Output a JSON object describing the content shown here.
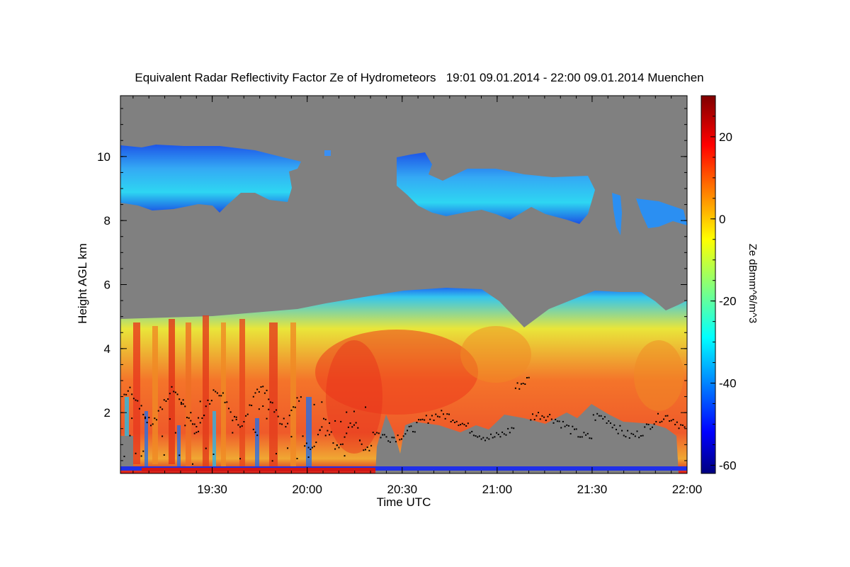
{
  "chart_data": {
    "type": "heatmap",
    "title": "Equivalent Radar Reflectivity Factor Ze of Hydrometeors   19:01 09.01.2014 - 22:00 09.01.2014 Muenchen",
    "xlabel": "Time UTC",
    "ylabel": "Height AGL km",
    "x_ticks": [
      "19:30",
      "20:00",
      "20:30",
      "21:00",
      "21:30",
      "22:00"
    ],
    "y_ticks": [
      "2",
      "4",
      "6",
      "8",
      "10"
    ],
    "xlim_minutes_after_19_00": [
      1,
      180
    ],
    "ylim_km": [
      0.1,
      11.9
    ],
    "colorbar": {
      "label": "Ze dBmm^6/m^3",
      "ticks": [
        "20",
        "0",
        "-20",
        "-40",
        "-60"
      ],
      "range": [
        -62,
        30
      ],
      "colormap": "jet"
    },
    "missing_color": "#808080",
    "features": [
      {
        "name": "upper cloud layer",
        "height_km": [
          8.2,
          10.5
        ],
        "ze_dbz": [
          -40,
          -25
        ]
      },
      {
        "name": "main precipitation layer",
        "height_km": [
          0.2,
          5.9
        ],
        "ze_dbz": [
          -40,
          25
        ]
      },
      {
        "name": "melting layer markers",
        "height_km": [
          1.2,
          3.2
        ],
        "color": "#000000"
      }
    ]
  }
}
